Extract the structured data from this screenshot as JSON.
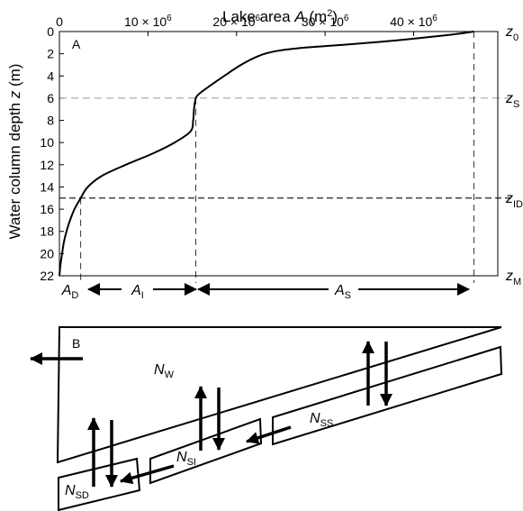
{
  "panel_a": {
    "label": "A",
    "x_axis": {
      "title_prefix": "Lake area ",
      "title_var": "A",
      "title_unit_open": " (m",
      "title_unit_sup": "2",
      "title_unit_close": ")",
      "ticks": [
        {
          "value": 0,
          "mantissa": "0",
          "exp": ""
        },
        {
          "value": 10,
          "mantissa": "10 × 10",
          "exp": "6"
        },
        {
          "value": 20,
          "mantissa": "20 × 10",
          "exp": "6"
        },
        {
          "value": 30,
          "mantissa": "30 × 10",
          "exp": "6"
        },
        {
          "value": 40,
          "mantissa": "40 × 10",
          "exp": "6"
        }
      ],
      "min": 0,
      "max": 49.5,
      "unit_note": "millions of m²"
    },
    "y_axis": {
      "title_prefix": "Water column depth ",
      "title_var": "z",
      "title_unit": " (m)",
      "ticks": [
        "0",
        "2",
        "4",
        "6",
        "8",
        "10",
        "12",
        "14",
        "16",
        "18",
        "20",
        "22"
      ],
      "min": 0,
      "max": 22
    },
    "curve": [
      {
        "z": 0,
        "a": 46.8
      },
      {
        "z": 0.3,
        "a": 44
      },
      {
        "z": 0.8,
        "a": 38
      },
      {
        "z": 1.2,
        "a": 32
      },
      {
        "z": 1.5,
        "a": 27
      },
      {
        "z": 1.8,
        "a": 24.2
      },
      {
        "z": 2.2,
        "a": 22.5
      },
      {
        "z": 3,
        "a": 20.5
      },
      {
        "z": 4,
        "a": 18.6
      },
      {
        "z": 5,
        "a": 16.8
      },
      {
        "z": 5.6,
        "a": 15.8
      },
      {
        "z": 6,
        "a": 15.4
      },
      {
        "z": 7,
        "a": 15.2
      },
      {
        "z": 8,
        "a": 15.1
      },
      {
        "z": 9,
        "a": 14.8
      },
      {
        "z": 10,
        "a": 13
      },
      {
        "z": 11,
        "a": 10.5
      },
      {
        "z": 12,
        "a": 7.5
      },
      {
        "z": 13,
        "a": 4.8
      },
      {
        "z": 14,
        "a": 3.2
      },
      {
        "z": 15,
        "a": 2.4
      },
      {
        "z": 16,
        "a": 1.7
      },
      {
        "z": 17,
        "a": 1.2
      },
      {
        "z": 18,
        "a": 0.8
      },
      {
        "z": 19,
        "a": 0.5
      },
      {
        "z": 20,
        "a": 0.3
      },
      {
        "z": 21,
        "a": 0.12
      },
      {
        "z": 22,
        "a": 0
      }
    ],
    "depth_lines": [
      {
        "z": 0,
        "main": "z",
        "sub": "0",
        "line": "none"
      },
      {
        "z": 6,
        "main": "z",
        "sub": "S",
        "line": "dashed"
      },
      {
        "z": 15,
        "main": "z",
        "sub": "ID",
        "line": "dashed-dark"
      },
      {
        "z": 22,
        "main": "z",
        "sub": "M",
        "line": "none"
      }
    ],
    "area_markers": [
      {
        "a": 2.4,
        "z_top": 15
      },
      {
        "a": 15.4,
        "z_top": 6
      },
      {
        "a": 46.8,
        "z_top": 0
      }
    ],
    "area_labels": [
      {
        "main": "A",
        "sub": "D"
      },
      {
        "main": "A",
        "sub": "I"
      },
      {
        "main": "A",
        "sub": "S"
      }
    ],
    "colors": {
      "curve": "#000000",
      "dashed": "#999999",
      "dashed_dark": "#222222"
    }
  },
  "panel_b": {
    "label": "B",
    "pools": [
      {
        "main": "N",
        "sub": "W"
      },
      {
        "main": "N",
        "sub": "SS"
      },
      {
        "main": "N",
        "sub": "SI"
      },
      {
        "main": "N",
        "sub": "SD"
      }
    ]
  }
}
